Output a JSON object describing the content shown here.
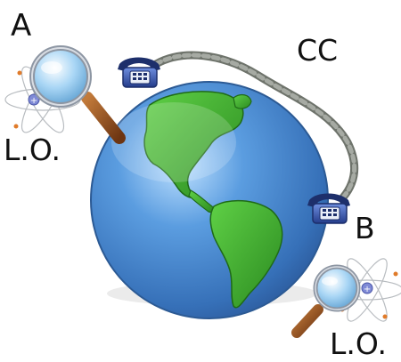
{
  "labels": {
    "a": "A",
    "b": "B",
    "cc": "CC",
    "lo_left": "L.O.",
    "lo_right": "L.O."
  },
  "icons": {
    "globe": "globe-icon",
    "telephone": "telephone-icon",
    "magnifier": "magnifying-glass-icon",
    "atom": "atom-icon",
    "cable": "phone-cord-icon"
  },
  "colors": {
    "ocean": "#3d7fc4",
    "land": "#3aa52a",
    "cord": "#8a8f87",
    "phone_body": "#2f4fa8",
    "magnifier_handle": "#8b4a1e",
    "lens": "#9fd0f0",
    "text": "#111111"
  }
}
